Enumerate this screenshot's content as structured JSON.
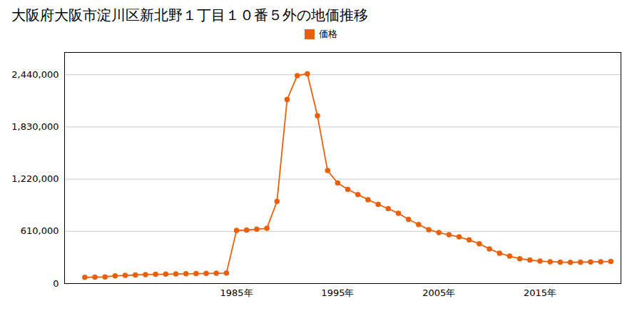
{
  "chart_data": {
    "type": "line",
    "title": "大阪府大阪市淀川区新北野１丁目１０番５外の地価推移",
    "x": [
      1970,
      1971,
      1972,
      1973,
      1974,
      1975,
      1976,
      1977,
      1978,
      1979,
      1980,
      1981,
      1982,
      1983,
      1984,
      1985,
      1986,
      1987,
      1988,
      1989,
      1990,
      1991,
      1992,
      1993,
      1994,
      1995,
      1996,
      1997,
      1998,
      1999,
      2000,
      2001,
      2002,
      2003,
      2004,
      2005,
      2006,
      2007,
      2008,
      2009,
      2010,
      2011,
      2012,
      2013,
      2014,
      2015,
      2016,
      2017,
      2018,
      2019,
      2020,
      2021,
      2022
    ],
    "series": [
      {
        "name": "価格",
        "color": "#e8610a",
        "marker": "circle",
        "values": [
          72000,
          75000,
          78000,
          90000,
          95000,
          100000,
          105000,
          108000,
          110000,
          112000,
          114000,
          116000,
          118000,
          120000,
          122000,
          620000,
          625000,
          635000,
          645000,
          960000,
          2150000,
          2430000,
          2450000,
          1960000,
          1320000,
          1175000,
          1100000,
          1040000,
          980000,
          925000,
          875000,
          820000,
          750000,
          690000,
          630000,
          595000,
          570000,
          545000,
          510000,
          465000,
          405000,
          355000,
          320000,
          290000,
          275000,
          262000,
          255000,
          250000,
          248000,
          250000,
          252000,
          255000,
          258000
        ]
      }
    ],
    "xlim": [
      1968,
      2023
    ],
    "xticks": [
      {
        "value": 1985,
        "label": "1985年"
      },
      {
        "value": 1995,
        "label": "1995年"
      },
      {
        "value": 2005,
        "label": "2005年"
      },
      {
        "value": 2015,
        "label": "2015年"
      }
    ],
    "ylim": [
      0,
      2700000
    ],
    "yticks": [
      0,
      {
        "value": 610000,
        "label": "610,000"
      },
      {
        "value": 1220000,
        "label": "1,220,000"
      },
      {
        "value": 1830000,
        "label": "1,830,000"
      },
      {
        "value": 2440000,
        "label": "2,440,000"
      }
    ],
    "grid": true,
    "legend": "top"
  }
}
